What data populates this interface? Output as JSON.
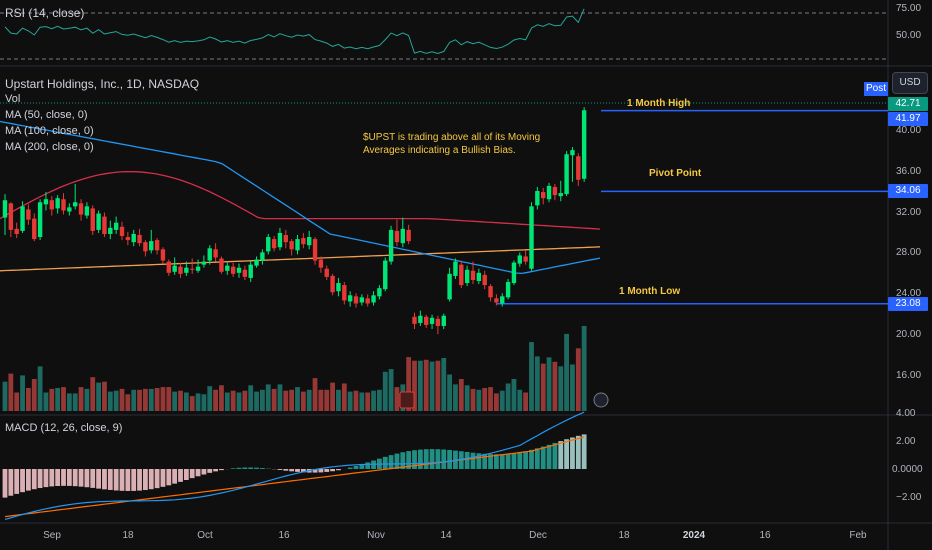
{
  "indicators": {
    "rsi_label": "RSI (14, close)",
    "title": "Upstart Holdings, Inc., 1D, NASDAQ",
    "vol_label": "Vol",
    "ma50_label": "MA (50, close, 0)",
    "ma100_label": "MA (100, close, 0)",
    "ma200_label": "MA (200, close, 0)",
    "macd_label": "MACD (12, 26, close, 9)"
  },
  "toolbar": {
    "currency": "USD",
    "post_badge": "Post"
  },
  "annotations": {
    "note": "$UPST is trading above all of its Moving Averages indicating a Bullish Bias.",
    "month_high": "1 Month High",
    "pivot": "Pivot Point",
    "month_low": "1 Month Low"
  },
  "price_tags": {
    "last": "42.71",
    "high": "41.97",
    "pivot": "34.06",
    "low": "23.08"
  },
  "rsi_axis": [
    "75.00",
    "50.00"
  ],
  "price_axis": [
    "40.00",
    "36.00",
    "32.00",
    "28.00",
    "24.00",
    "20.00",
    "16.00"
  ],
  "macd_axis": [
    "4.00",
    "2.00",
    "0.0000",
    "−2.00"
  ],
  "time_axis": [
    "Sep",
    "18",
    "Oct",
    "16",
    "Nov",
    "14",
    "Dec",
    "18",
    "2024",
    "16",
    "Feb"
  ],
  "colors": {
    "up": "#00e676",
    "down": "#e53935",
    "ma50": "#2196f3",
    "ma100": "#d32f4a",
    "ma200": "#f0a050",
    "vol_up": "#26a69a",
    "vol_down": "#ef5350",
    "level": "#2962ff",
    "macd": "#2196f3",
    "signal": "#ff6d00"
  },
  "chart_data": {
    "type": "candlestick",
    "title": "Upstart Holdings, Inc., 1D, NASDAQ",
    "price_range": [
      13,
      43
    ],
    "levels": {
      "month_high": 41.97,
      "pivot": 34.06,
      "month_low": 23.08,
      "last": 42.71
    },
    "candles": [
      {
        "o": 31.5,
        "c": 33.2,
        "h": 33.8,
        "l": 29.8
      },
      {
        "o": 32.9,
        "c": 30.3,
        "h": 33.0,
        "l": 29.6
      },
      {
        "o": 30.4,
        "c": 29.9,
        "h": 31.0,
        "l": 29.5
      },
      {
        "o": 30.2,
        "c": 32.6,
        "h": 33.1,
        "l": 30.0
      },
      {
        "o": 32.3,
        "c": 31.3,
        "h": 32.8,
        "l": 30.8
      },
      {
        "o": 31.4,
        "c": 29.4,
        "h": 31.9,
        "l": 29.2
      },
      {
        "o": 29.6,
        "c": 33.0,
        "h": 33.3,
        "l": 29.3
      },
      {
        "o": 32.8,
        "c": 33.3,
        "h": 34.0,
        "l": 32.2
      },
      {
        "o": 33.2,
        "c": 32.3,
        "h": 33.6,
        "l": 31.7
      },
      {
        "o": 32.4,
        "c": 33.4,
        "h": 33.7,
        "l": 31.9
      },
      {
        "o": 33.3,
        "c": 32.2,
        "h": 33.9,
        "l": 31.8
      },
      {
        "o": 32.1,
        "c": 32.5,
        "h": 32.9,
        "l": 31.7
      },
      {
        "o": 32.6,
        "c": 33.0,
        "h": 34.8,
        "l": 32.3
      },
      {
        "o": 32.9,
        "c": 31.8,
        "h": 33.3,
        "l": 31.2
      },
      {
        "o": 31.7,
        "c": 32.6,
        "h": 33.0,
        "l": 31.4
      },
      {
        "o": 32.4,
        "c": 30.2,
        "h": 32.7,
        "l": 29.8
      },
      {
        "o": 30.3,
        "c": 31.9,
        "h": 32.2,
        "l": 30.0
      },
      {
        "o": 31.6,
        "c": 29.9,
        "h": 32.0,
        "l": 29.6
      },
      {
        "o": 29.9,
        "c": 30.5,
        "h": 31.2,
        "l": 29.4
      },
      {
        "o": 30.3,
        "c": 31.0,
        "h": 31.6,
        "l": 29.9
      },
      {
        "o": 30.6,
        "c": 29.7,
        "h": 31.1,
        "l": 29.3
      },
      {
        "o": 29.6,
        "c": 29.3,
        "h": 30.1,
        "l": 28.8
      },
      {
        "o": 29.1,
        "c": 29.9,
        "h": 30.3,
        "l": 28.7
      },
      {
        "o": 29.8,
        "c": 29.0,
        "h": 30.4,
        "l": 28.7
      },
      {
        "o": 29.1,
        "c": 28.2,
        "h": 29.3,
        "l": 27.7
      },
      {
        "o": 28.3,
        "c": 29.2,
        "h": 30.3,
        "l": 28.0
      },
      {
        "o": 29.3,
        "c": 28.3,
        "h": 29.5,
        "l": 27.9
      },
      {
        "o": 28.4,
        "c": 27.3,
        "h": 28.6,
        "l": 27.0
      },
      {
        "o": 27.2,
        "c": 26.1,
        "h": 27.4,
        "l": 25.8
      },
      {
        "o": 26.2,
        "c": 26.8,
        "h": 27.6,
        "l": 25.9
      },
      {
        "o": 26.7,
        "c": 26.0,
        "h": 27.1,
        "l": 25.6
      },
      {
        "o": 26.1,
        "c": 26.6,
        "h": 27.2,
        "l": 25.8
      },
      {
        "o": 26.5,
        "c": 26.4,
        "h": 27.5,
        "l": 26.0
      },
      {
        "o": 26.3,
        "c": 26.7,
        "h": 27.4,
        "l": 26.1
      },
      {
        "o": 26.9,
        "c": 27.2,
        "h": 27.8,
        "l": 26.6
      },
      {
        "o": 27.3,
        "c": 28.5,
        "h": 28.8,
        "l": 26.9
      },
      {
        "o": 28.4,
        "c": 27.6,
        "h": 29.0,
        "l": 27.2
      },
      {
        "o": 27.5,
        "c": 26.2,
        "h": 27.7,
        "l": 26.0
      },
      {
        "o": 26.3,
        "c": 26.8,
        "h": 27.1,
        "l": 25.9
      },
      {
        "o": 26.7,
        "c": 26.0,
        "h": 27.1,
        "l": 25.7
      },
      {
        "o": 26.1,
        "c": 26.6,
        "h": 27.0,
        "l": 25.6
      },
      {
        "o": 26.4,
        "c": 25.7,
        "h": 26.8,
        "l": 25.4
      },
      {
        "o": 25.6,
        "c": 26.9,
        "h": 27.3,
        "l": 25.2
      },
      {
        "o": 26.8,
        "c": 27.4,
        "h": 27.7,
        "l": 26.6
      },
      {
        "o": 27.3,
        "c": 28.1,
        "h": 28.4,
        "l": 26.9
      },
      {
        "o": 28.2,
        "c": 29.6,
        "h": 29.9,
        "l": 27.9
      },
      {
        "o": 29.4,
        "c": 28.5,
        "h": 29.7,
        "l": 28.2
      },
      {
        "o": 28.6,
        "c": 30.0,
        "h": 30.5,
        "l": 28.3
      },
      {
        "o": 29.8,
        "c": 29.1,
        "h": 30.3,
        "l": 28.5
      },
      {
        "o": 29.2,
        "c": 28.4,
        "h": 29.4,
        "l": 27.8
      },
      {
        "o": 28.3,
        "c": 29.4,
        "h": 29.8,
        "l": 27.9
      },
      {
        "o": 29.5,
        "c": 28.9,
        "h": 30.0,
        "l": 28.5
      },
      {
        "o": 28.8,
        "c": 29.6,
        "h": 30.2,
        "l": 28.4
      },
      {
        "o": 29.4,
        "c": 27.3,
        "h": 29.6,
        "l": 26.9
      },
      {
        "o": 27.4,
        "c": 26.6,
        "h": 27.7,
        "l": 26.1
      },
      {
        "o": 26.5,
        "c": 25.7,
        "h": 26.8,
        "l": 25.4
      },
      {
        "o": 25.8,
        "c": 24.2,
        "h": 26.0,
        "l": 23.9
      },
      {
        "o": 24.3,
        "c": 25.1,
        "h": 25.6,
        "l": 23.8
      },
      {
        "o": 24.9,
        "c": 23.4,
        "h": 25.2,
        "l": 23.0
      },
      {
        "o": 23.3,
        "c": 23.9,
        "h": 24.3,
        "l": 22.8
      },
      {
        "o": 23.8,
        "c": 23.1,
        "h": 24.1,
        "l": 22.7
      },
      {
        "o": 23.2,
        "c": 23.7,
        "h": 24.0,
        "l": 22.9
      },
      {
        "o": 23.6,
        "c": 23.1,
        "h": 24.0,
        "l": 22.8
      },
      {
        "o": 23.2,
        "c": 23.9,
        "h": 24.3,
        "l": 22.9
      },
      {
        "o": 23.8,
        "c": 24.6,
        "h": 24.9,
        "l": 23.5
      },
      {
        "o": 24.5,
        "c": 27.3,
        "h": 27.6,
        "l": 24.3
      },
      {
        "o": 27.2,
        "c": 30.3,
        "h": 30.7,
        "l": 26.9
      },
      {
        "o": 30.2,
        "c": 29.1,
        "h": 31.3,
        "l": 28.7
      },
      {
        "o": 29.0,
        "c": 30.4,
        "h": 31.5,
        "l": 28.6
      },
      {
        "o": 30.3,
        "c": 29.2,
        "h": 30.8,
        "l": 28.9
      },
      {
        "o": 21.8,
        "c": 21.1,
        "h": 22.2,
        "l": 20.6
      },
      {
        "o": 21.2,
        "c": 21.9,
        "h": 22.4,
        "l": 20.9
      },
      {
        "o": 21.8,
        "c": 21.0,
        "h": 22.0,
        "l": 20.7
      },
      {
        "o": 21.1,
        "c": 21.7,
        "h": 22.0,
        "l": 20.6
      },
      {
        "o": 21.6,
        "c": 20.9,
        "h": 21.9,
        "l": 20.1
      },
      {
        "o": 20.9,
        "c": 21.9,
        "h": 22.1,
        "l": 20.6
      },
      {
        "o": 23.5,
        "c": 26.0,
        "h": 26.6,
        "l": 23.3
      },
      {
        "o": 25.8,
        "c": 27.2,
        "h": 27.5,
        "l": 25.5
      },
      {
        "o": 26.9,
        "c": 24.9,
        "h": 27.3,
        "l": 24.6
      },
      {
        "o": 25.1,
        "c": 26.4,
        "h": 26.8,
        "l": 24.8
      },
      {
        "o": 26.3,
        "c": 25.4,
        "h": 27.2,
        "l": 25.0
      },
      {
        "o": 25.3,
        "c": 26.1,
        "h": 26.5,
        "l": 25.0
      },
      {
        "o": 25.9,
        "c": 24.9,
        "h": 26.3,
        "l": 24.5
      },
      {
        "o": 24.8,
        "c": 23.7,
        "h": 25.0,
        "l": 23.3
      },
      {
        "o": 23.6,
        "c": 23.2,
        "h": 24.0,
        "l": 22.9
      },
      {
        "o": 23.1,
        "c": 23.8,
        "h": 24.1,
        "l": 22.8
      },
      {
        "o": 23.7,
        "c": 25.2,
        "h": 25.5,
        "l": 23.5
      },
      {
        "o": 25.1,
        "c": 27.1,
        "h": 27.3,
        "l": 24.9
      },
      {
        "o": 27.0,
        "c": 27.8,
        "h": 28.1,
        "l": 26.7
      },
      {
        "o": 27.7,
        "c": 27.2,
        "h": 28.3,
        "l": 26.9
      },
      {
        "o": 26.5,
        "c": 32.6,
        "h": 33.0,
        "l": 26.3
      },
      {
        "o": 32.7,
        "c": 34.1,
        "h": 34.5,
        "l": 32.3
      },
      {
        "o": 34.0,
        "c": 33.4,
        "h": 34.4,
        "l": 32.8
      },
      {
        "o": 33.3,
        "c": 34.6,
        "h": 34.9,
        "l": 33.0
      },
      {
        "o": 34.5,
        "c": 33.7,
        "h": 34.8,
        "l": 33.2
      },
      {
        "o": 33.6,
        "c": 33.9,
        "h": 35.1,
        "l": 33.1
      },
      {
        "o": 33.8,
        "c": 37.7,
        "h": 38.0,
        "l": 33.6
      },
      {
        "o": 37.6,
        "c": 38.1,
        "h": 38.4,
        "l": 35.0
      },
      {
        "o": 37.5,
        "c": 35.2,
        "h": 37.8,
        "l": 34.6
      },
      {
        "o": 35.3,
        "c": 42.0,
        "h": 42.3,
        "l": 35.0
      }
    ]
  }
}
